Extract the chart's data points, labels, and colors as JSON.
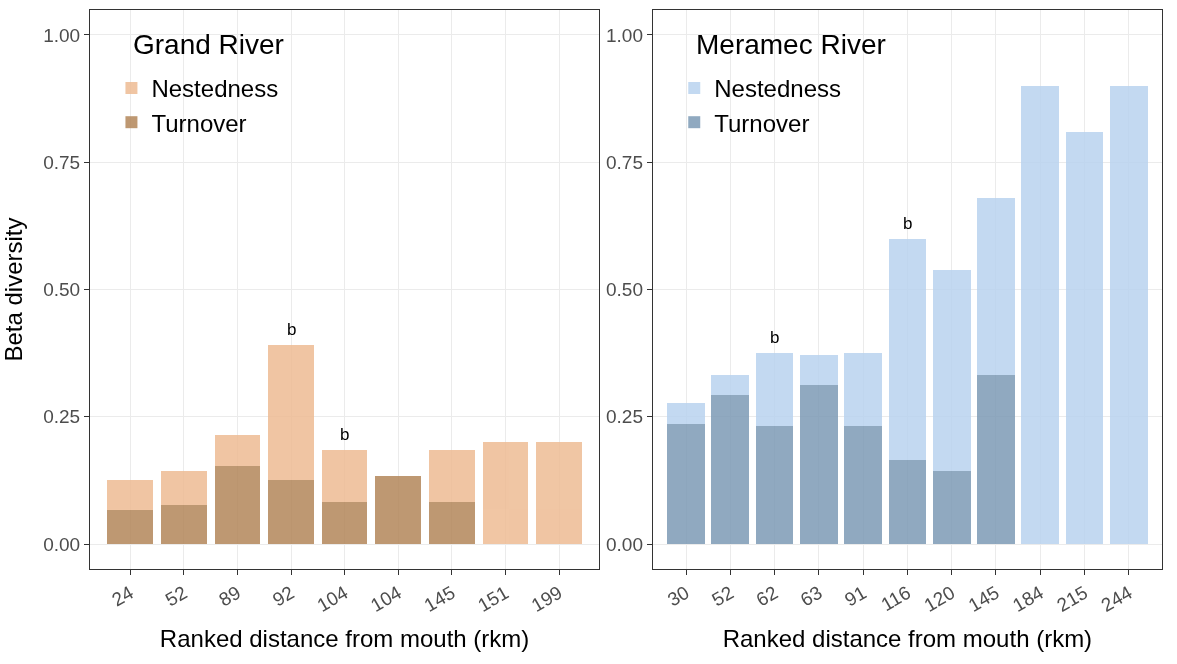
{
  "chart_data": [
    {
      "type": "bar",
      "title": "Grand River",
      "xlabel": "Ranked distance from mouth (rkm)",
      "ylabel": "Beta diversity",
      "stacked": true,
      "categories": [
        "24",
        "52",
        "89",
        "92",
        "104",
        "104",
        "145",
        "151",
        "199"
      ],
      "series": [
        {
          "name": "Turnover",
          "color": "#b3875a",
          "values": [
            0.067,
            0.077,
            0.154,
            0.125,
            0.083,
            0.133,
            0.083,
            0,
            0
          ]
        },
        {
          "name": "Nestedness",
          "color": "#eebc94",
          "values": [
            0.059,
            0.066,
            0.06,
            0.266,
            0.101,
            0,
            0.101,
            0.2,
            0.2
          ]
        }
      ],
      "ylim": [
        -0.049,
        1.049
      ],
      "yticks": [
        {
          "value": 0,
          "label": "0.00"
        },
        {
          "value": 0.25,
          "label": "0.25"
        },
        {
          "value": 0.5,
          "label": "0.50"
        },
        {
          "value": 0.75,
          "label": "0.75"
        },
        {
          "value": 1,
          "label": "1.00"
        }
      ],
      "annotations": [
        {
          "text": "b",
          "x": "92",
          "y": 0.391
        },
        {
          "text": "b",
          "x": "104",
          "y": 0.184
        }
      ],
      "grid": true,
      "legend": "top left"
    },
    {
      "type": "bar",
      "title": "Meramec River",
      "xlabel": "Ranked distance from mouth (rkm)",
      "stacked": true,
      "categories": [
        "30",
        "52",
        "62",
        "63",
        "91",
        "116",
        "120",
        "145",
        "184",
        "215",
        "244"
      ],
      "series": [
        {
          "name": "Turnover",
          "color": "#7d9bb6",
          "values": [
            0.235,
            0.293,
            0.231,
            0.312,
            0.231,
            0.166,
            0.143,
            0.333,
            0,
            0,
            0
          ]
        },
        {
          "name": "Nestedness",
          "color": "#b9d3ef",
          "values": [
            0.043,
            0.04,
            0.144,
            0.059,
            0.144,
            0.434,
            0.396,
            0.347,
            0.9,
            0.809,
            0.9
          ]
        }
      ],
      "ylim": [
        -0.049,
        1.049
      ],
      "yticks": [
        {
          "value": 0,
          "label": "0.00"
        },
        {
          "value": 0.25,
          "label": "0.25"
        },
        {
          "value": 0.5,
          "label": "0.50"
        },
        {
          "value": 0.75,
          "label": "0.75"
        },
        {
          "value": 1,
          "label": "1.00"
        }
      ],
      "annotations": [
        {
          "text": "b",
          "x": "62",
          "y": 0.375
        },
        {
          "text": "b",
          "x": "116",
          "y": 0.6
        }
      ],
      "grid": true,
      "legend": "top left"
    }
  ]
}
